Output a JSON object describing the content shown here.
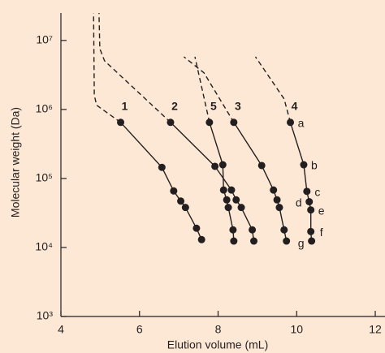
{
  "chart_data": {
    "type": "line",
    "x_label": "Elution volume (mL)",
    "y_label": "Molecular weight (Da)",
    "xlim": [
      4,
      12
    ],
    "xticks": [
      4,
      6,
      8,
      10,
      12
    ],
    "ylim": [
      1000,
      25000000
    ],
    "log_y": true,
    "yticks": [
      {
        "value": 1000,
        "label": "10³"
      },
      {
        "value": 10000,
        "label": "10⁴"
      },
      {
        "value": 100000,
        "label": "10⁵"
      },
      {
        "value": 1000000,
        "label": "10⁶"
      },
      {
        "value": 10000000,
        "label": "10⁷"
      }
    ],
    "color": "#231f20",
    "series": [
      {
        "name": "1",
        "x": [
          5.52,
          6.57,
          6.87,
          7.05,
          7.17,
          7.45,
          7.58
        ],
        "values": [
          650000,
          145000,
          66000,
          47000,
          38000,
          19000,
          13000
        ],
        "extension": {
          "x": [
            5.52,
            4.91,
            4.85,
            4.83
          ],
          "values": [
            650000,
            1150000,
            1600000,
            25000000
          ]
        }
      },
      {
        "name": "2",
        "x": [
          6.79,
          7.92,
          8.34,
          8.46,
          8.59,
          8.87,
          8.91
        ],
        "values": [
          650000,
          150000,
          68000,
          49000,
          38000,
          18000,
          12400
        ],
        "extension": {
          "x": [
            6.79,
            5.11,
            4.99,
            4.97
          ],
          "values": [
            650000,
            5080000,
            7600000,
            25000000
          ]
        }
      },
      {
        "name": "5",
        "x": [
          7.78,
          8.12,
          8.14,
          8.22,
          8.26,
          8.38,
          8.4
        ],
        "values": [
          650000,
          158000,
          68000,
          49000,
          38000,
          18000,
          12400
        ],
        "extension": {
          "x": [
            7.78,
            7.41
          ],
          "values": [
            650000,
            5800000
          ]
        }
      },
      {
        "name": "3",
        "x": [
          8.4,
          9.11,
          9.41,
          9.5,
          9.56,
          9.68,
          9.74
        ],
        "values": [
          650000,
          154000,
          68000,
          49000,
          38000,
          18000,
          12400
        ],
        "extension": {
          "x": [
            8.4,
            7.64,
            7.13
          ],
          "values": [
            650000,
            3400000,
            5800000
          ]
        }
      },
      {
        "name": "4",
        "x": [
          9.84,
          10.18,
          10.26,
          10.32,
          10.36,
          10.36,
          10.38
        ],
        "values": [
          650000,
          158000,
          65000,
          46000,
          35000,
          17000,
          12400
        ],
        "extension": {
          "x": [
            9.84,
            9.68,
            8.95
          ],
          "values": [
            650000,
            1420000,
            5800000
          ]
        },
        "point_labels": [
          "a",
          "b",
          "c",
          "d",
          "e",
          "f",
          "g"
        ]
      }
    ]
  }
}
